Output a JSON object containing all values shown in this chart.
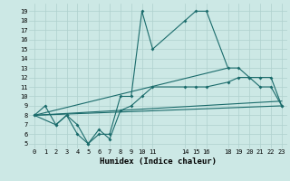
{
  "xlabel": "Humidex (Indice chaleur)",
  "bg_color": "#cce8e5",
  "grid_color": "#afd0cd",
  "line_color": "#1a6b6b",
  "xlim": [
    -0.5,
    23.5
  ],
  "ylim": [
    4.5,
    19.8
  ],
  "xticks": [
    0,
    1,
    2,
    3,
    4,
    5,
    6,
    7,
    8,
    9,
    10,
    11,
    14,
    15,
    16,
    18,
    19,
    20,
    21,
    22,
    23
  ],
  "yticks": [
    5,
    6,
    7,
    8,
    9,
    10,
    11,
    12,
    13,
    14,
    15,
    16,
    17,
    18,
    19
  ],
  "lines": [
    {
      "x": [
        0,
        1,
        2,
        3,
        4,
        5,
        6,
        7,
        8,
        9,
        10,
        11,
        14,
        15,
        16,
        18,
        19,
        20,
        21,
        22,
        23
      ],
      "y": [
        8,
        9,
        7,
        8,
        6,
        5,
        6,
        6,
        10,
        10,
        19,
        15,
        18,
        19,
        19,
        13,
        13,
        12,
        11,
        11,
        9
      ],
      "marker": true
    },
    {
      "x": [
        0,
        2,
        3,
        4,
        5,
        6,
        7,
        8,
        9,
        10,
        11,
        14,
        15,
        16,
        18,
        19,
        20,
        21,
        22,
        23
      ],
      "y": [
        8,
        7,
        8,
        7,
        5,
        6.5,
        5.5,
        8.5,
        9,
        10,
        11,
        11,
        11,
        11,
        11.5,
        12,
        12,
        12,
        12,
        9
      ],
      "marker": true
    },
    {
      "x": [
        0,
        23
      ],
      "y": [
        8,
        9
      ],
      "marker": false
    },
    {
      "x": [
        0,
        18
      ],
      "y": [
        8,
        13
      ],
      "marker": false
    },
    {
      "x": [
        0,
        23
      ],
      "y": [
        8,
        9.5
      ],
      "marker": false
    }
  ],
  "figsize": [
    3.2,
    2.0
  ],
  "dpi": 100
}
